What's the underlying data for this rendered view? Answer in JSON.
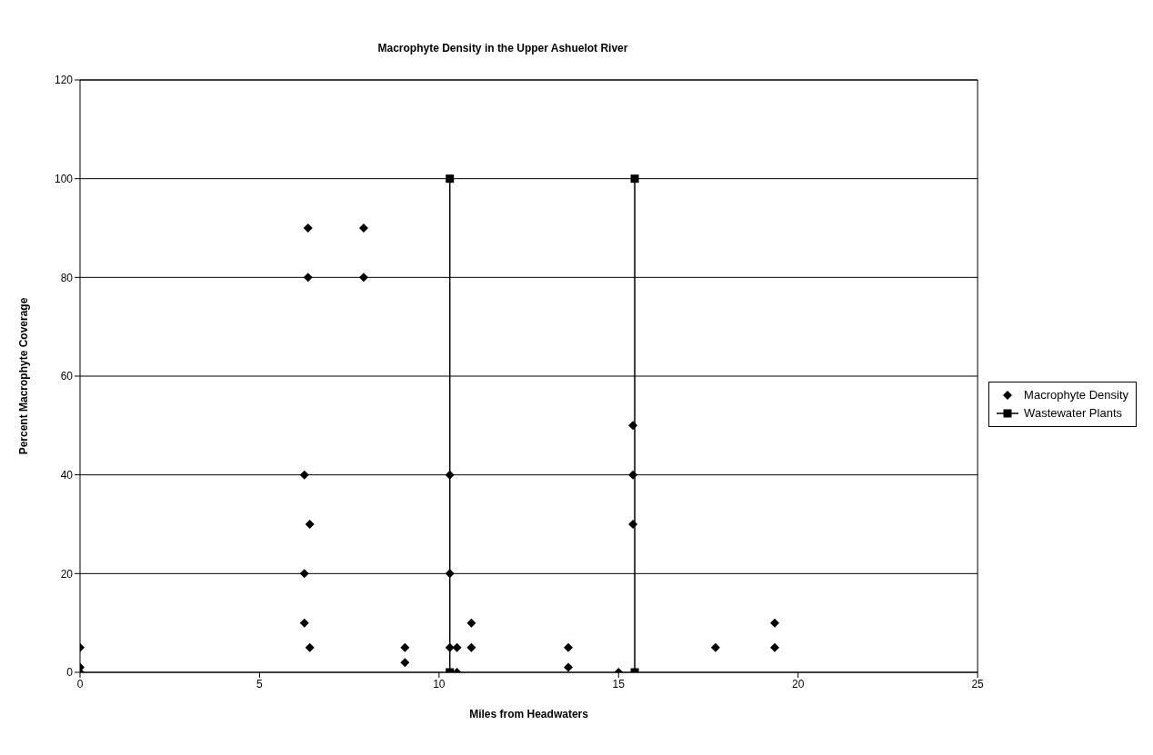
{
  "chart_data": {
    "type": "scatter",
    "title": "Macrophyte Density in the Upper Ashuelot River",
    "xlabel": "Miles from Headwaters",
    "ylabel": "Percent Macrophyte Coverage",
    "xlim": [
      0,
      25
    ],
    "xticks": [
      0,
      5,
      10,
      15,
      20,
      25
    ],
    "ylim": [
      0,
      120
    ],
    "yticks": [
      0,
      20,
      40,
      60,
      80,
      100,
      120
    ],
    "grid": "y",
    "legend": "right",
    "series": [
      {
        "name": "Macrophyte Density",
        "marker": "diamond",
        "color": "#000000",
        "x": [
          0,
          0,
          0,
          6.25,
          6.25,
          6.25,
          6.35,
          6.35,
          6.4,
          6.4,
          7.9,
          7.9,
          9.05,
          9.05,
          10.3,
          10.3,
          10.3,
          10.5,
          10.5,
          10.9,
          10.9,
          13.6,
          13.6,
          15.0,
          15.4,
          15.4,
          15.4,
          17.7,
          19.35,
          19.35
        ],
        "values": [
          5,
          1,
          0,
          40,
          20,
          10,
          90,
          80,
          30,
          5,
          90,
          80,
          5,
          2,
          40,
          20,
          5,
          5,
          0,
          10,
          5,
          5,
          1,
          0,
          50,
          40,
          30,
          5,
          10,
          5
        ]
      },
      {
        "name": "Wastewater Plants",
        "type": "line",
        "marker": "square",
        "line_style": "solid",
        "color": "#000000",
        "x": [
          10.3,
          10.3,
          12.85,
          15.45,
          15.45
        ],
        "values": [
          0,
          100,
          null,
          100,
          0
        ]
      }
    ]
  }
}
